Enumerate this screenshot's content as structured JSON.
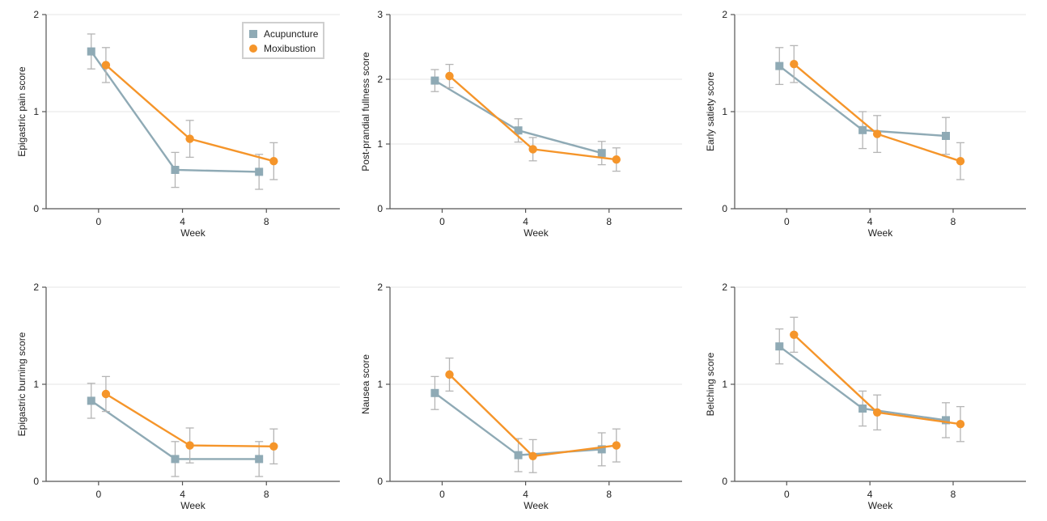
{
  "colors": {
    "acupuncture": "#8faab5",
    "moxibustion": "#f5952a",
    "error_bar": "#b5b5b5",
    "grid": "#e6e6e6",
    "axis": "#555555"
  },
  "legend": {
    "items": [
      {
        "label": "Acupuncture",
        "marker": "square",
        "color": "#8faab5"
      },
      {
        "label": "Moxibustion",
        "marker": "circle",
        "color": "#f5952a"
      }
    ],
    "placement": "top-right of first panel"
  },
  "chart_data": [
    {
      "type": "line",
      "ylabel": "Epigastric pain score",
      "xlabel": "Week",
      "x": [
        0,
        4,
        8
      ],
      "ylim": [
        0,
        2
      ],
      "yticks": [
        0,
        1,
        2
      ],
      "grid": true,
      "series": [
        {
          "name": "Acupuncture",
          "values": [
            1.62,
            0.4,
            0.38
          ],
          "error": [
            0.18,
            0.18,
            0.18
          ]
        },
        {
          "name": "Moxibustion",
          "values": [
            1.48,
            0.72,
            0.49
          ],
          "error": [
            0.18,
            0.19,
            0.19
          ]
        }
      ]
    },
    {
      "type": "line",
      "ylabel": "Post-prandial fullness score",
      "xlabel": "Week",
      "x": [
        0,
        4,
        8
      ],
      "ylim": [
        0,
        3
      ],
      "yticks": [
        0,
        1,
        2,
        3
      ],
      "grid": true,
      "series": [
        {
          "name": "Acupuncture",
          "values": [
            1.98,
            1.21,
            0.86
          ],
          "error": [
            0.17,
            0.18,
            0.18
          ]
        },
        {
          "name": "Moxibustion",
          "values": [
            2.05,
            0.92,
            0.76
          ],
          "error": [
            0.18,
            0.18,
            0.18
          ]
        }
      ]
    },
    {
      "type": "line",
      "ylabel": "Early satiety score",
      "xlabel": "Week",
      "x": [
        0,
        4,
        8
      ],
      "ylim": [
        0,
        2
      ],
      "yticks": [
        0,
        1,
        2
      ],
      "grid": true,
      "series": [
        {
          "name": "Acupuncture",
          "values": [
            1.47,
            0.81,
            0.75
          ],
          "error": [
            0.19,
            0.19,
            0.19
          ]
        },
        {
          "name": "Moxibustion",
          "values": [
            1.49,
            0.77,
            0.49
          ],
          "error": [
            0.19,
            0.19,
            0.19
          ]
        }
      ]
    },
    {
      "type": "line",
      "ylabel": "Epigastric burning score",
      "xlabel": "Week",
      "x": [
        0,
        4,
        8
      ],
      "ylim": [
        0,
        2
      ],
      "yticks": [
        0,
        1,
        2
      ],
      "grid": true,
      "series": [
        {
          "name": "Acupuncture",
          "values": [
            0.83,
            0.23,
            0.23
          ],
          "error": [
            0.18,
            0.18,
            0.18
          ]
        },
        {
          "name": "Moxibustion",
          "values": [
            0.9,
            0.37,
            0.36
          ],
          "error": [
            0.18,
            0.18,
            0.18
          ]
        }
      ]
    },
    {
      "type": "line",
      "ylabel": "Nausea score",
      "xlabel": "Week",
      "x": [
        0,
        4,
        8
      ],
      "ylim": [
        0,
        2
      ],
      "yticks": [
        0,
        1,
        2
      ],
      "grid": true,
      "series": [
        {
          "name": "Acupuncture",
          "values": [
            0.91,
            0.27,
            0.33
          ],
          "error": [
            0.17,
            0.17,
            0.17
          ]
        },
        {
          "name": "Moxibustion",
          "values": [
            1.1,
            0.26,
            0.37
          ],
          "error": [
            0.17,
            0.17,
            0.17
          ]
        }
      ]
    },
    {
      "type": "line",
      "ylabel": "Belching score",
      "xlabel": "Week",
      "x": [
        0,
        4,
        8
      ],
      "ylim": [
        0,
        2
      ],
      "yticks": [
        0,
        1,
        2
      ],
      "grid": true,
      "series": [
        {
          "name": "Acupuncture",
          "values": [
            1.39,
            0.75,
            0.63
          ],
          "error": [
            0.18,
            0.18,
            0.18
          ]
        },
        {
          "name": "Moxibustion",
          "values": [
            1.51,
            0.71,
            0.59
          ],
          "error": [
            0.18,
            0.18,
            0.18
          ]
        }
      ]
    }
  ]
}
